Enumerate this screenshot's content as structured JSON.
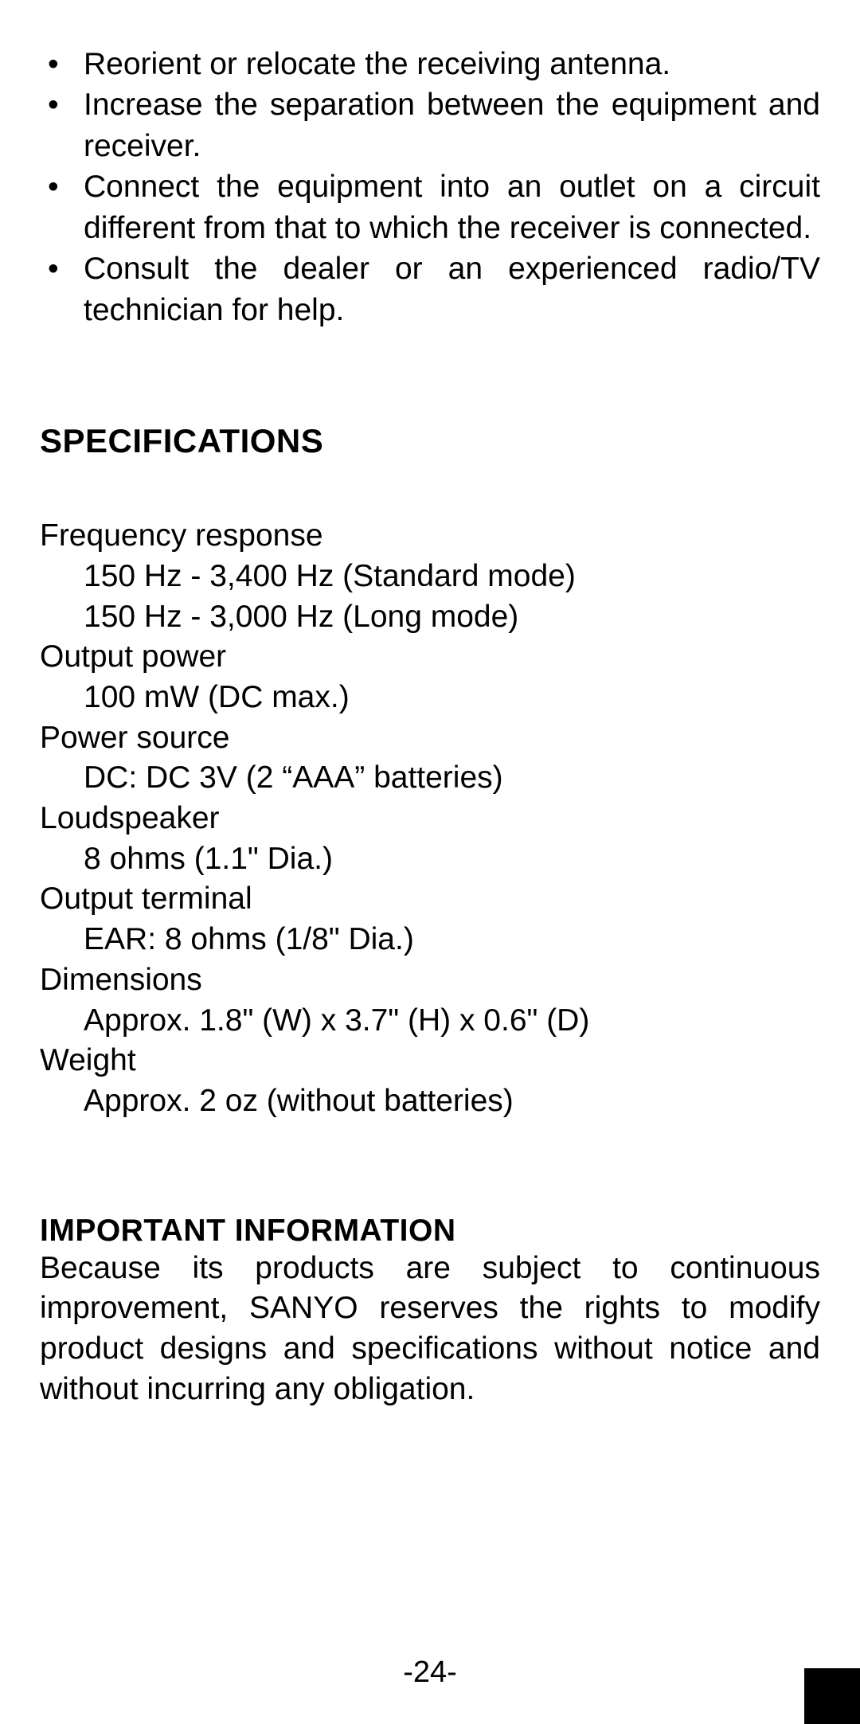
{
  "colors": {
    "text": "#000000",
    "background": "#ffffff",
    "tab": "#000000"
  },
  "typography": {
    "body_fontsize_pt": 29,
    "heading_fontsize_pt": 31,
    "font_family": "Arial"
  },
  "bullets": [
    "Reorient or relocate the receiving antenna.",
    "Increase the separation between the equipment and receiver.",
    "Connect the equipment into an outlet on a circuit different from that to which the receiver is connected.",
    "Consult the dealer or an experienced radio/TV technician for help."
  ],
  "spec_heading": "Specifications",
  "specs": [
    {
      "label": "Frequency response",
      "values": [
        "150 Hz - 3,400 Hz (Standard mode)",
        "150 Hz - 3,000 Hz (Long mode)"
      ]
    },
    {
      "label": "Output power",
      "values": [
        "100 mW (DC max.)"
      ]
    },
    {
      "label": "Power source",
      "values": [
        "DC: DC 3V (2 “AAA” batteries)"
      ]
    },
    {
      "label": "Loudspeaker",
      "values": [
        "8 ohms (1.1\" Dia.)"
      ]
    },
    {
      "label": "Output terminal",
      "values": [
        "EAR: 8 ohms (1/8\" Dia.)"
      ]
    },
    {
      "label": "Dimensions",
      "values": [
        "Approx. 1.8\" (W) x  3.7\" (H) x  0.6\" (D)"
      ]
    },
    {
      "label": "Weight",
      "values": [
        "Approx. 2 oz (without batteries)"
      ]
    }
  ],
  "important_heading": "Important Information",
  "important_text": "Because its products are subject to continuous improvement, SANYO reserves the rights to modify product designs and specifications without notice and without incurring any obligation.",
  "page_number": "-24-"
}
